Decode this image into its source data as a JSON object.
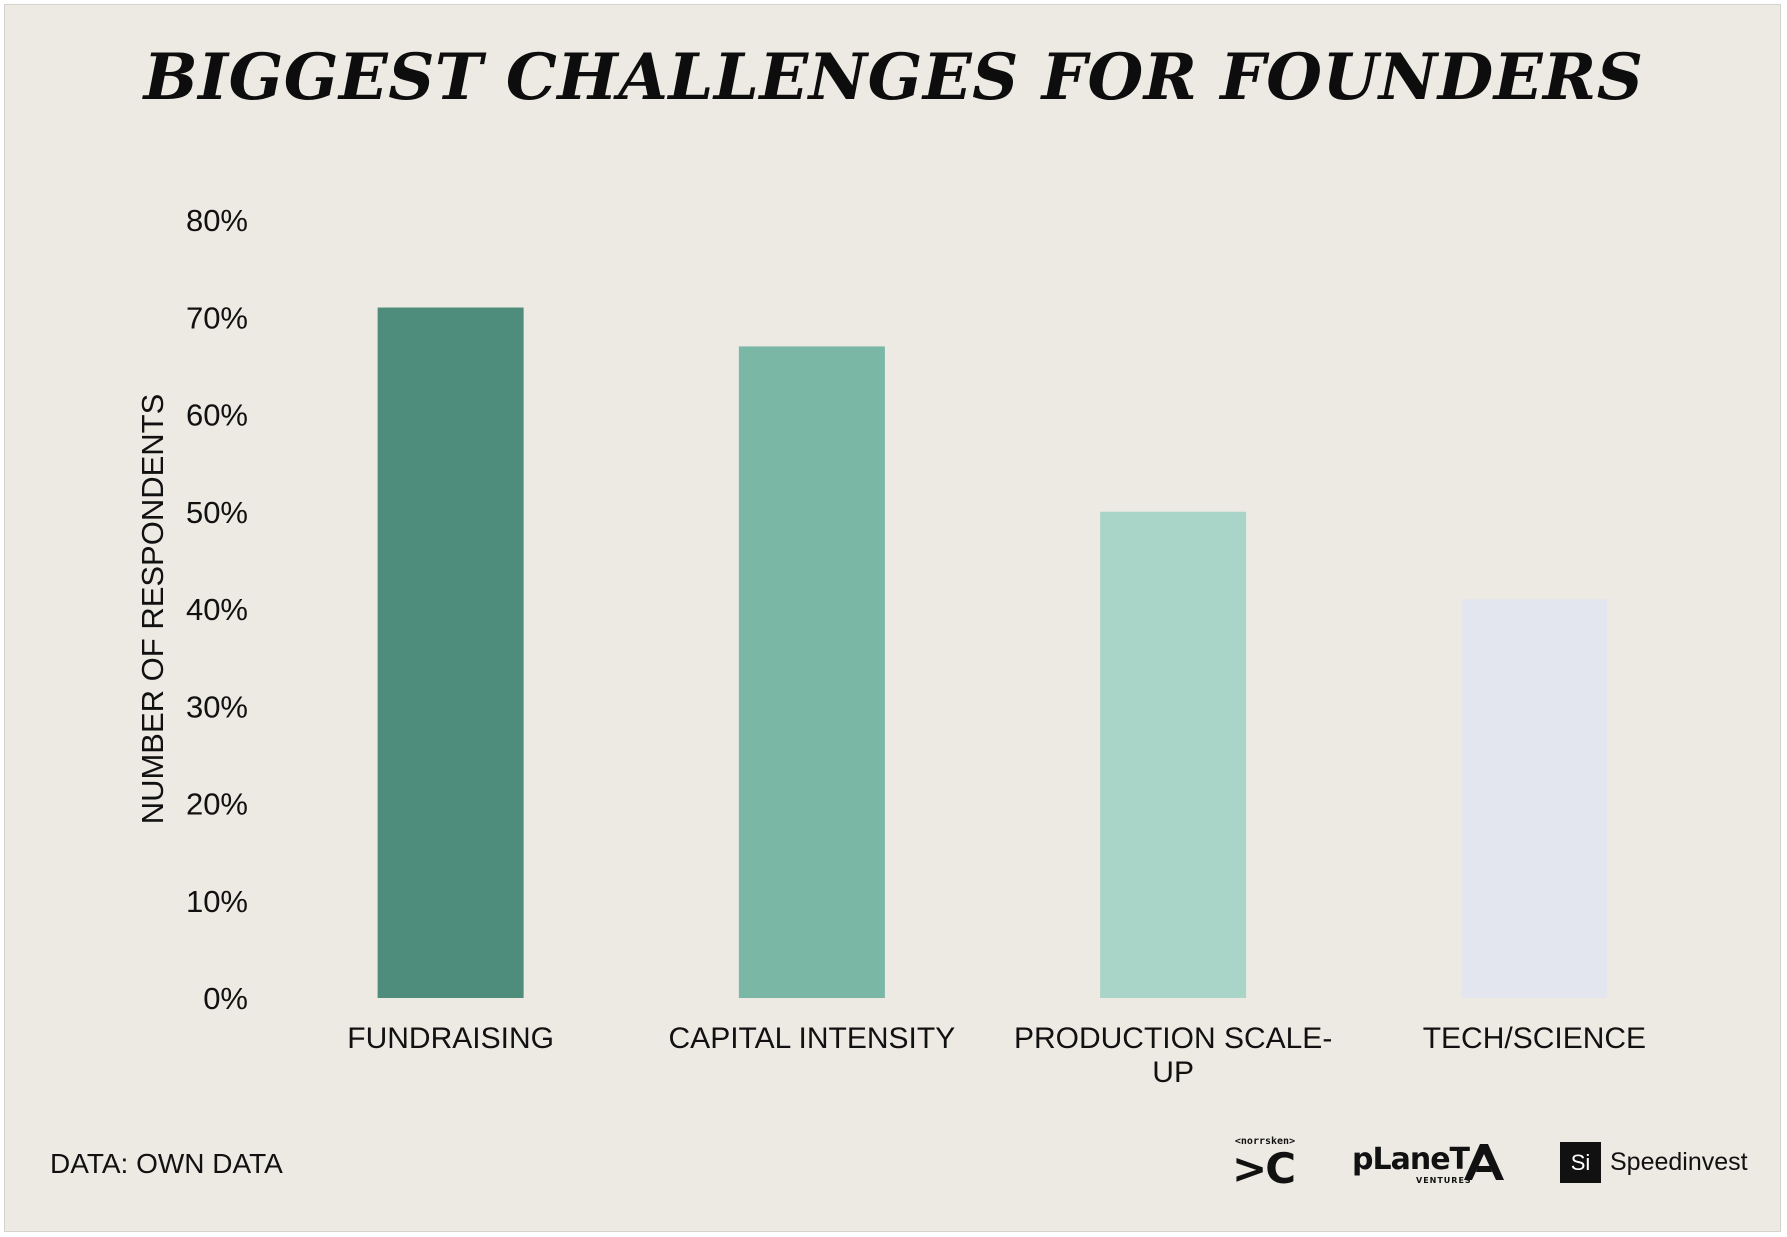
{
  "chart_data": {
    "type": "bar",
    "title": "BIGGEST CHALLENGES FOR FOUNDERS",
    "xlabel": "",
    "ylabel": "NUMBER OF RESPONDENTS",
    "categories": [
      "FUNDRAISING",
      "CAPITAL INTENSITY",
      "PRODUCTION SCALE-UP",
      "TECH/SCIENCE"
    ],
    "category_label_lines": [
      [
        "FUNDRAISING"
      ],
      [
        "CAPITAL INTENSITY"
      ],
      [
        "PRODUCTION SCALE-",
        "UP"
      ],
      [
        "TECH/SCIENCE"
      ]
    ],
    "values": [
      71,
      67,
      50,
      41
    ],
    "unit": "%",
    "ylim": [
      0,
      80
    ],
    "yticks": [
      0,
      10,
      20,
      30,
      40,
      50,
      60,
      70,
      80
    ],
    "ytick_labels": [
      "0%",
      "10%",
      "20%",
      "30%",
      "40%",
      "50%",
      "60%",
      "70%",
      "80%"
    ],
    "bar_colors": [
      "#4e8d7c",
      "#7ab7a5",
      "#a8d5c7",
      "#e3e6ee"
    ],
    "grid": false,
    "legend": "none"
  },
  "footer": {
    "source": "DATA: OWN DATA",
    "logos": {
      "norrsken_small": "<norrsken>",
      "norrsken_big": ">C",
      "planet_word": "pLaneT",
      "planet_sub": "VENTURES",
      "speedinvest_mark": "Si",
      "speedinvest_word": "Speedinvest"
    }
  }
}
